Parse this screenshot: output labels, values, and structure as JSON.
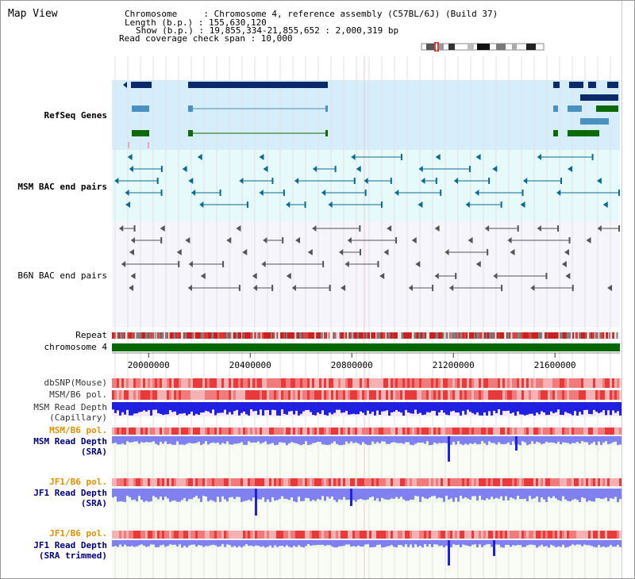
{
  "title": "Map View",
  "info": {
    "line1": "Chromosome     : Chromosome 4, reference assembly (C57BL/6J) (Build 37)",
    "line2": "Length (b.p.) : 155,630,120",
    "line3": "Show (b.p.) : 19,855,334-21,855,652 : 2,000,319 bp",
    "line4": "Read coverage check span : 10,000"
  },
  "tracks": {
    "refseq": {
      "label": "RefSeq Genes",
      "color": "#000080"
    },
    "msm_bac": {
      "label": "MSM BAC end pairs",
      "color": "#006080"
    },
    "b6n_bac": {
      "label": "B6N BAC end pairs",
      "color": "#404040"
    },
    "repeat": {
      "label": "Repeat"
    },
    "chromosome": {
      "label": "chromosome 4"
    },
    "dbsnp": {
      "label": "dbSNP(Mouse)"
    },
    "msm_pol": {
      "label": "MSM/B6 pol."
    },
    "msm_depth_cap": {
      "line1": "MSM Read Depth",
      "line2": "(Capillary)"
    },
    "msm_pol2": {
      "label": "MSM/B6 pol."
    },
    "msm_depth_sra": {
      "line1": "MSM Read Depth",
      "line2": "(SRA)"
    },
    "jf1_pol": {
      "label": "JF1/B6 pol."
    },
    "jf1_depth_sra": {
      "line1": "JF1 Read Depth",
      "line2": "(SRA)"
    },
    "jf1_pol2": {
      "label": "JF1/B6 pol."
    },
    "jf1_depth_trim": {
      "line1": "JF1 Read Depth",
      "line2": "(SRA trimmed)"
    }
  },
  "axis": {
    "ticks": [
      {
        "label": "20000000",
        "value": 20000000
      },
      {
        "label": "20400000",
        "value": 20400000
      },
      {
        "label": "20800000",
        "value": 20800000
      },
      {
        "label": "21200000",
        "value": 21200000
      },
      {
        "label": "21600000",
        "value": 21600000
      }
    ],
    "start": 19855334,
    "end": 21855652
  },
  "colors": {
    "refseq_bg": "#d6eefa",
    "msm_bg": "#e6fafa",
    "b6n_bg": "#f5f5fa",
    "gene_dark": "#0a2a6a",
    "gene_mid": "#4a90c0",
    "gene_green": "#0a6a0a",
    "chrom_green": "#006600",
    "depth_blue": "#2020e0",
    "depth_light": "#8080f0",
    "label_orange": "#e09000",
    "label_blue": "#000080"
  }
}
